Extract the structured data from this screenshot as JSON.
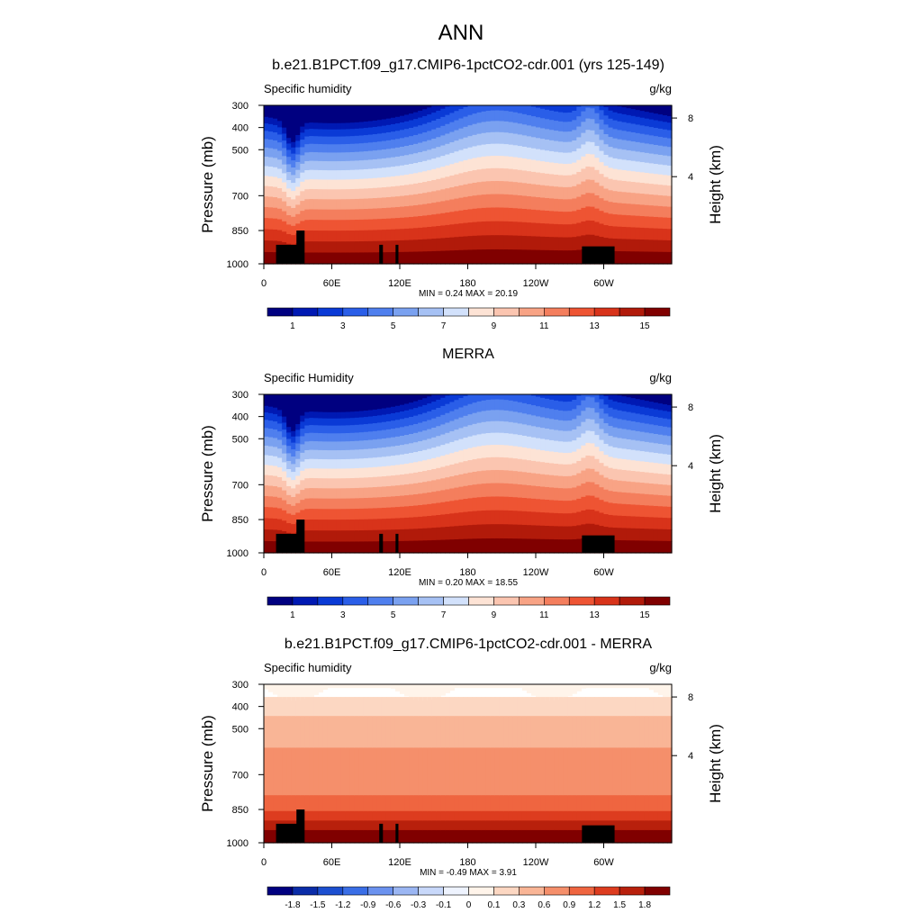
{
  "title": "ANN",
  "chart_data": [
    {
      "type": "heatmap",
      "title": "b.e21.B1PCT.f09_g17.CMIP6-1pctCO2-cdr.001 (yrs 125-149)",
      "left_label": "Specific humidity",
      "right_label": "g/kg",
      "ylabel": "Pressure (mb)",
      "ylabel_right": "Height (km)",
      "yticks": [
        "300",
        "400",
        "500",
        "700",
        "850",
        "1000"
      ],
      "yticks_right": [
        "8",
        "4"
      ],
      "xticks": [
        "0",
        "60E",
        "120E",
        "180",
        "120W",
        "60W"
      ],
      "stats": "MIN =   0.24  MAX =  20.19",
      "colorbar_labels": [
        "1",
        "3",
        "5",
        "7",
        "9",
        "11",
        "13",
        "15"
      ],
      "colorbar_colors": [
        "#000080",
        "#0019b3",
        "#0a3ad6",
        "#2a5ee8",
        "#4f7fee",
        "#7aa1f0",
        "#a6c1f4",
        "#d2e1fb",
        "#fde3d5",
        "#fbc5b0",
        "#f8a385",
        "#f47e5d",
        "#ee5433",
        "#d8331a",
        "#b11a0a",
        "#800000"
      ]
    },
    {
      "type": "heatmap",
      "title": "MERRA",
      "left_label": "Specific Humidity",
      "right_label": "g/kg",
      "ylabel": "Pressure (mb)",
      "ylabel_right": "Height (km)",
      "yticks": [
        "300",
        "400",
        "500",
        "700",
        "850",
        "1000"
      ],
      "yticks_right": [
        "8",
        "4"
      ],
      "xticks": [
        "0",
        "60E",
        "120E",
        "180",
        "120W",
        "60W"
      ],
      "stats": "MIN =   0.20  MAX =  18.55",
      "colorbar_labels": [
        "1",
        "3",
        "5",
        "7",
        "9",
        "11",
        "13",
        "15"
      ],
      "colorbar_colors": [
        "#000080",
        "#0019b3",
        "#0a3ad6",
        "#2a5ee8",
        "#4f7fee",
        "#7aa1f0",
        "#a6c1f4",
        "#d2e1fb",
        "#fde3d5",
        "#fbc5b0",
        "#f8a385",
        "#f47e5d",
        "#ee5433",
        "#d8331a",
        "#b11a0a",
        "#800000"
      ]
    },
    {
      "type": "heatmap",
      "title": "b.e21.B1PCT.f09_g17.CMIP6-1pctCO2-cdr.001 - MERRA",
      "left_label": "Specific humidity",
      "right_label": "g/kg",
      "ylabel": "Pressure (mb)",
      "ylabel_right": "Height (km)",
      "yticks": [
        "300",
        "400",
        "500",
        "700",
        "850",
        "1000"
      ],
      "yticks_right": [
        "8",
        "4"
      ],
      "xticks": [
        "0",
        "60E",
        "120E",
        "180",
        "120W",
        "60W"
      ],
      "stats": "MIN =  -0.49  MAX =   3.91",
      "colorbar_labels": [
        "-1.8",
        "-1.5",
        "-1.2",
        "-0.9",
        "-0.6",
        "-0.3",
        "-0.1",
        "0",
        "0.1",
        "0.3",
        "0.6",
        "0.9",
        "1.2",
        "1.5",
        "1.8"
      ],
      "colorbar_colors": [
        "#000080",
        "#0a2ca8",
        "#1c4fd0",
        "#3a6ee6",
        "#6b92ef",
        "#9bb6f3",
        "#c8d8fa",
        "#eef3fe",
        "#fff4ea",
        "#fcd7c2",
        "#f9b596",
        "#f58f6b",
        "#ef6540",
        "#dd3c1f",
        "#b8200c",
        "#800000"
      ]
    }
  ]
}
